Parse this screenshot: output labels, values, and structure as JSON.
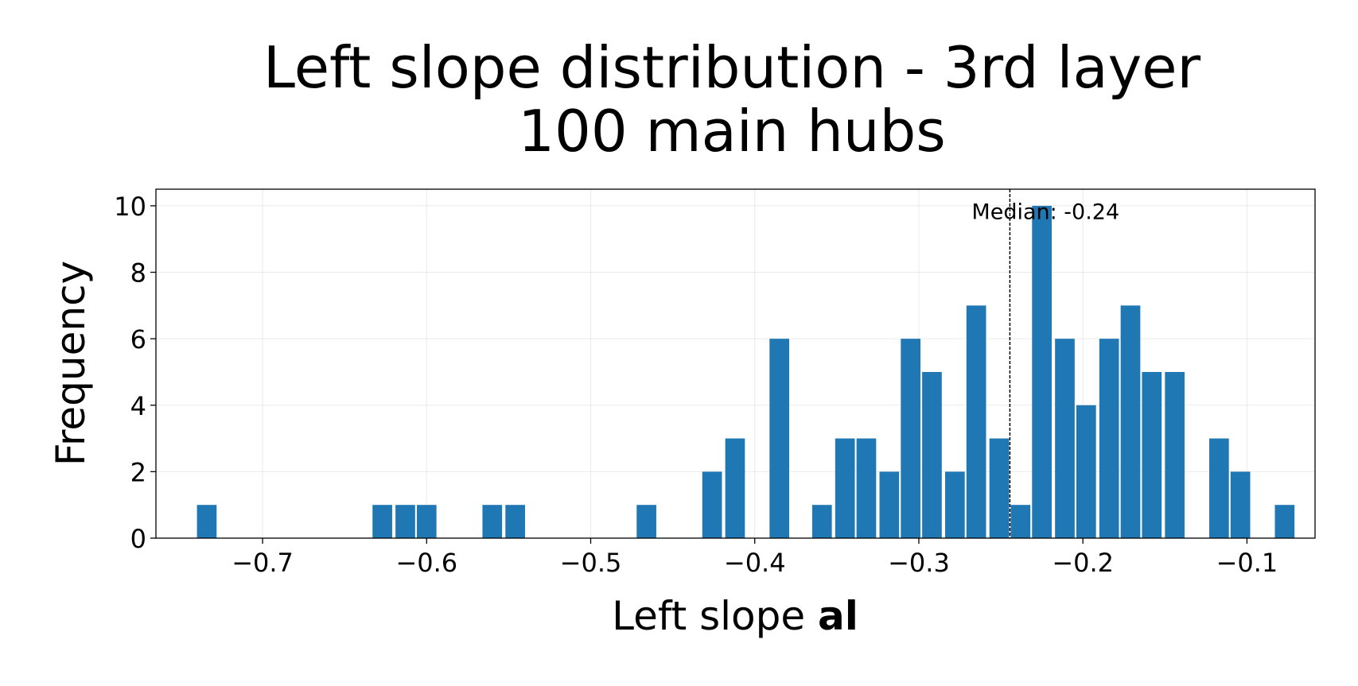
{
  "chart_data": {
    "type": "bar",
    "title": [
      "Left slope distribution - 3rd layer",
      "100 main hubs"
    ],
    "xlabel": {
      "plain": "Left slope ",
      "bold": "al"
    },
    "ylabel": "Frequency",
    "xlim": [
      -0.765,
      -0.0585
    ],
    "ylim": [
      0,
      10.5
    ],
    "xticks": [
      -0.7,
      -0.6,
      -0.5,
      -0.4,
      -0.3,
      -0.2,
      -0.1
    ],
    "xtick_labels": [
      "−0.7",
      "−0.6",
      "−0.5",
      "−0.4",
      "−0.3",
      "−0.2",
      "−0.1"
    ],
    "yticks": [
      0,
      2,
      4,
      6,
      8,
      10
    ],
    "ytick_labels": [
      "0",
      "2",
      "4",
      "6",
      "8",
      "10"
    ],
    "grid": true,
    "bar_color": "#1f77b4",
    "bin_width": 0.01342,
    "bins": [
      {
        "x": -0.734,
        "value": 1
      },
      {
        "x": -0.627,
        "value": 1
      },
      {
        "x": -0.613,
        "value": 1
      },
      {
        "x": -0.6,
        "value": 1
      },
      {
        "x": -0.56,
        "value": 1
      },
      {
        "x": -0.546,
        "value": 1
      },
      {
        "x": -0.466,
        "value": 1
      },
      {
        "x": -0.426,
        "value": 2
      },
      {
        "x": -0.412,
        "value": 3
      },
      {
        "x": -0.385,
        "value": 6
      },
      {
        "x": -0.359,
        "value": 1
      },
      {
        "x": -0.345,
        "value": 3
      },
      {
        "x": -0.332,
        "value": 3
      },
      {
        "x": -0.318,
        "value": 2
      },
      {
        "x": -0.305,
        "value": 6
      },
      {
        "x": -0.292,
        "value": 5
      },
      {
        "x": -0.278,
        "value": 2
      },
      {
        "x": -0.265,
        "value": 7
      },
      {
        "x": -0.251,
        "value": 3
      },
      {
        "x": -0.238,
        "value": 1
      },
      {
        "x": -0.225,
        "value": 10
      },
      {
        "x": -0.211,
        "value": 6
      },
      {
        "x": -0.198,
        "value": 4
      },
      {
        "x": -0.184,
        "value": 6
      },
      {
        "x": -0.171,
        "value": 7
      },
      {
        "x": -0.158,
        "value": 5
      },
      {
        "x": -0.144,
        "value": 5
      },
      {
        "x": -0.117,
        "value": 3
      },
      {
        "x": -0.104,
        "value": 2
      },
      {
        "x": -0.077,
        "value": 1
      }
    ],
    "median": {
      "value": -0.2445,
      "label": "Median: -0.24",
      "line_color": "#000000",
      "line_style": "dashed"
    }
  }
}
